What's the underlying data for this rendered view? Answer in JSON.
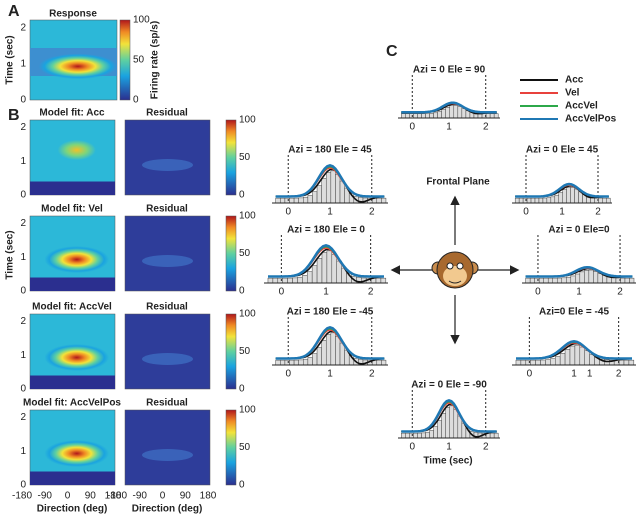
{
  "panel_labels": [
    "A",
    "B",
    "C"
  ],
  "panel_a": {
    "title": "Response",
    "y_label": "Time (sec)",
    "yticks": [
      "0",
      "1",
      "2"
    ],
    "colorbar": {
      "label": "Firing rate (sp/s)",
      "ticks": [
        "0",
        "50",
        "100"
      ]
    }
  },
  "panel_b": {
    "rows": [
      {
        "fit_title": "Model fit:  Acc",
        "residual_title": "Residual"
      },
      {
        "fit_title": "Model fit:  Vel",
        "residual_title": "Residual"
      },
      {
        "fit_title": "Model fit:  AccVel",
        "residual_title": "Residual"
      },
      {
        "fit_title": "Model fit:  AccVelPos",
        "residual_title": "Residual"
      }
    ],
    "y_label": "Time (sec)",
    "yticks": [
      "0",
      "1",
      "2"
    ],
    "colorbar_ticks": [
      "0",
      "50",
      "100"
    ],
    "xticks": [
      "-180",
      "-90",
      "0",
      "90",
      "180"
    ],
    "x_label": "Direction (deg)"
  },
  "panel_c": {
    "center_label": "Frontal Plane",
    "x_label": "Time (sec)",
    "legend": [
      {
        "name": "Acc",
        "color": "#111111"
      },
      {
        "name": "Vel",
        "color": "#e8413c"
      },
      {
        "name": "AccVel",
        "color": "#2ca84a"
      },
      {
        "name": "AccVelPos",
        "color": "#1f78b4"
      }
    ],
    "subplots": [
      {
        "title": "Azi = 0  Ele = 90",
        "xticks": [
          "0",
          "1",
          "2"
        ]
      },
      {
        "title": "Azi = 180  Ele = 45",
        "xticks": [
          "0",
          "1",
          "2"
        ]
      },
      {
        "title": "Azi = 0  Ele = 45",
        "xticks": [
          "0",
          "1",
          "2"
        ]
      },
      {
        "title": "Azi = 180  Ele = 0",
        "xticks": [
          "0",
          "1",
          "2"
        ]
      },
      {
        "title": "Azi = 0  Ele=0",
        "xticks": [
          "0",
          "1",
          "2"
        ]
      },
      {
        "title": "Azi = 180  Ele = -45",
        "xticks": [
          "0",
          "1",
          "2"
        ]
      },
      {
        "title": "Azi=0  Ele = -45",
        "xticks": [
          "0",
          "1",
          "1",
          "2"
        ]
      },
      {
        "title": "Azi = 0  Ele = -90",
        "xticks": [
          "0",
          "1",
          "2"
        ]
      }
    ]
  }
}
